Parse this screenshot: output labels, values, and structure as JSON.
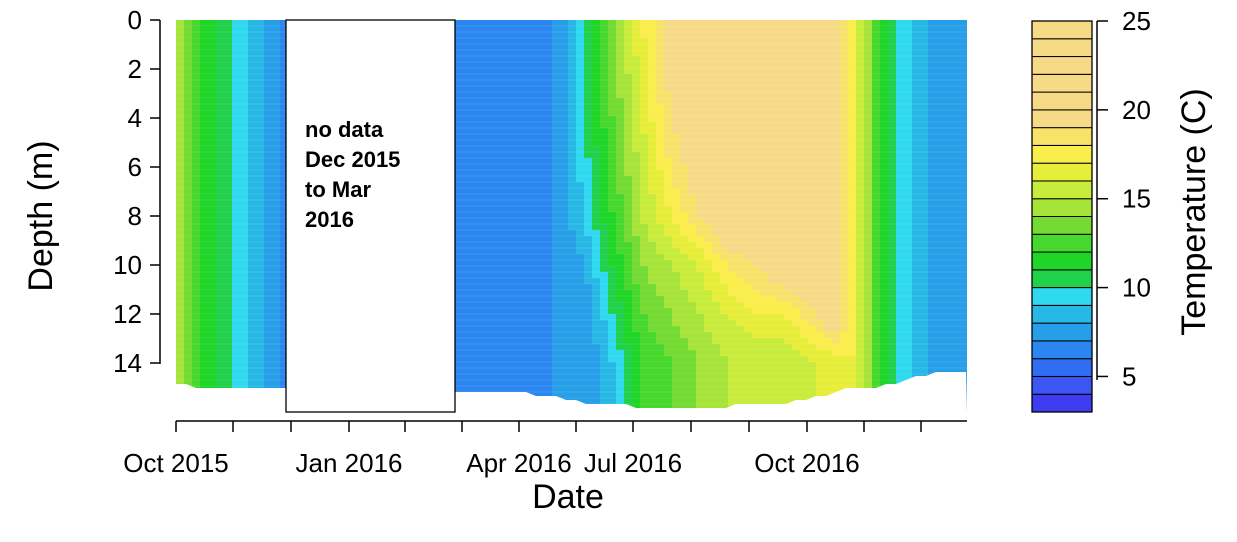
{
  "chart_data": {
    "type": "heatmap",
    "title": "",
    "xlabel": "Date",
    "ylabel": "Depth (m)",
    "colorbar_label": "Temperature (C)",
    "x_ticks": [
      "Oct 2015",
      "Jan 2016",
      "Apr 2016",
      "Jul 2016",
      "Oct 2016"
    ],
    "y_ticks": [
      "0",
      "2",
      "4",
      "6",
      "8",
      "10",
      "12",
      "14"
    ],
    "y_reversed": true,
    "ylim": [
      0,
      15.8
    ],
    "colorbar_ticks": [
      "5",
      "10",
      "15",
      "20",
      "25"
    ],
    "colorbar_range": [
      3,
      25
    ],
    "colorbar_step": 1,
    "no_data_note": [
      "no data",
      "Dec 2015",
      "to Mar",
      "2016"
    ],
    "no_data_period": [
      "2015-12-01",
      "2016-03-31"
    ],
    "approximate_profiles": {
      "dates": [
        "2015-10-01",
        "2015-10-15",
        "2015-10-30",
        "2015-11-10",
        "2015-11-25",
        "2016-04-01",
        "2016-04-20",
        "2016-05-05",
        "2016-05-20",
        "2016-06-05",
        "2016-06-20",
        "2016-07-05",
        "2016-07-20",
        "2016-08-05",
        "2016-08-20",
        "2016-09-05",
        "2016-09-15",
        "2016-09-25",
        "2016-10-10",
        "2016-10-25",
        "2016-11-10"
      ],
      "depths_m": [
        0,
        4,
        8,
        10,
        12,
        14
      ],
      "temperature_c": [
        [
          15,
          15,
          15,
          15,
          15,
          15
        ],
        [
          12,
          12,
          12,
          12,
          12,
          12
        ],
        [
          10,
          10,
          10,
          10,
          10,
          10
        ],
        [
          9,
          9,
          9,
          9,
          9,
          9
        ],
        [
          7,
          7,
          7,
          7,
          7,
          7
        ],
        [
          6,
          6,
          6,
          6,
          6,
          6
        ],
        [
          7,
          7,
          7,
          7,
          7,
          7
        ],
        [
          10,
          10,
          9,
          8,
          7,
          7
        ],
        [
          14,
          13,
          12,
          11,
          10,
          9
        ],
        [
          17,
          16,
          15,
          14,
          13,
          12
        ],
        [
          20,
          19,
          17,
          15,
          14,
          13
        ],
        [
          22,
          21,
          19,
          16,
          15,
          14
        ],
        [
          24,
          23,
          21,
          18,
          16,
          15
        ],
        [
          24,
          24,
          22,
          19,
          17,
          15
        ],
        [
          24,
          24,
          23,
          21,
          17,
          15
        ],
        [
          23,
          23,
          23,
          22,
          19,
          16
        ],
        [
          21,
          21,
          21,
          21,
          21,
          16
        ],
        [
          17,
          17,
          17,
          17,
          17,
          17
        ],
        [
          12,
          12,
          12,
          12,
          12,
          12
        ],
        [
          9,
          9,
          9,
          9,
          9,
          9
        ],
        [
          7,
          7,
          7,
          7,
          7,
          7
        ]
      ],
      "bottom_depth_m": [
        14.8,
        15.0,
        15.0,
        15.0,
        15.0,
        15.2,
        15.4,
        15.6,
        15.6,
        15.8,
        15.8,
        15.8,
        15.8,
        15.6,
        15.6,
        15.4,
        15.2,
        15.0,
        15.0,
        14.6,
        14.4
      ]
    },
    "palette": [
      "#3e3cf1",
      "#3c56f5",
      "#2f6ef2",
      "#2b86f0",
      "#279ee8",
      "#27b8e6",
      "#2fd9ef",
      "#21d14a",
      "#1fd528",
      "#46d82c",
      "#73db32",
      "#a6e43a",
      "#c8ec3b",
      "#e7ee3a",
      "#f9ee4b",
      "#f8e36a",
      "#f6da86"
    ]
  }
}
